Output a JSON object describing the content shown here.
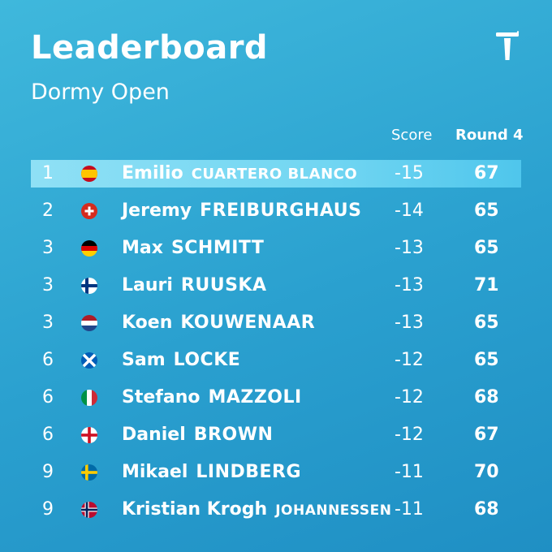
{
  "header": {
    "title": "Leaderboard",
    "subtitle": "Dormy Open",
    "logo_icon": "tour-logo-icon"
  },
  "columns": {
    "score": "Score",
    "round": "Round 4"
  },
  "colors": {
    "background": "#2aa0cf",
    "highlight": "#7fdaf3",
    "text": "#ffffff"
  },
  "rows": [
    {
      "pos": "1",
      "flag": "spain",
      "first": "Emilio",
      "last": "CUARTERO BLANCO",
      "score": "-15",
      "round": "67",
      "highlight": true
    },
    {
      "pos": "2",
      "flag": "switzerland",
      "first": "Jeremy",
      "last": "FREIBURGHAUS",
      "score": "-14",
      "round": "65"
    },
    {
      "pos": "3",
      "flag": "germany",
      "first": "Max",
      "last": "SCHMITT",
      "score": "-13",
      "round": "65"
    },
    {
      "pos": "3",
      "flag": "finland",
      "first": "Lauri",
      "last": "RUUSKA",
      "score": "-13",
      "round": "71"
    },
    {
      "pos": "3",
      "flag": "netherlands",
      "first": "Koen",
      "last": "KOUWENAAR",
      "score": "-13",
      "round": "65"
    },
    {
      "pos": "6",
      "flag": "scotland",
      "first": "Sam",
      "last": "LOCKE",
      "score": "-12",
      "round": "65"
    },
    {
      "pos": "6",
      "flag": "italy",
      "first": "Stefano",
      "last": "MAZZOLI",
      "score": "-12",
      "round": "68"
    },
    {
      "pos": "6",
      "flag": "england",
      "first": "Daniel",
      "last": "BROWN",
      "score": "-12",
      "round": "67"
    },
    {
      "pos": "9",
      "flag": "sweden",
      "first": "Mikael",
      "last": "LINDBERG",
      "score": "-11",
      "round": "70"
    },
    {
      "pos": "9",
      "flag": "norway",
      "first": "Kristian Krogh",
      "last": "JOHANNESSEN",
      "score": "-11",
      "round": "68"
    }
  ]
}
